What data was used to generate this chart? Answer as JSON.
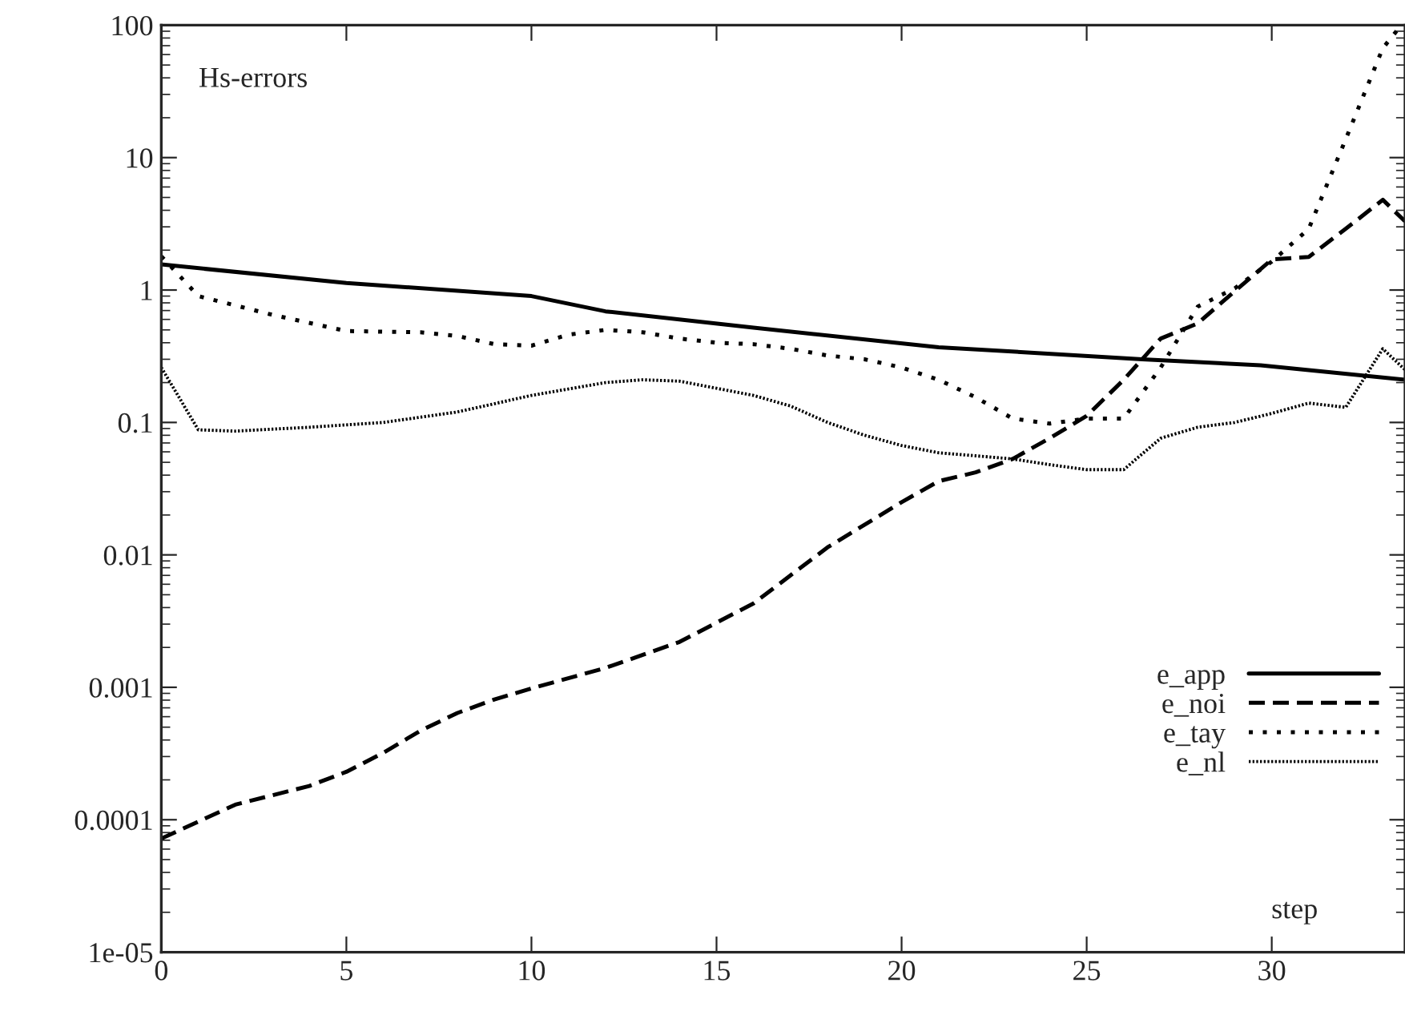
{
  "chart_data": {
    "type": "line",
    "title": "Hs-errors",
    "xlabel": "step",
    "xlim": [
      0,
      33.6
    ],
    "xticks": [
      0,
      5,
      10,
      15,
      20,
      25,
      30
    ],
    "ylim": [
      1e-05,
      100
    ],
    "yticks": [
      {
        "value": 1e-05,
        "label": "1e-05"
      },
      {
        "value": 0.0001,
        "label": "0.0001"
      },
      {
        "value": 0.001,
        "label": "0.001"
      },
      {
        "value": 0.01,
        "label": "0.01"
      },
      {
        "value": 0.1,
        "label": "0.1"
      },
      {
        "value": 1,
        "label": "1"
      },
      {
        "value": 10,
        "label": "10"
      },
      {
        "value": 100,
        "label": "100"
      }
    ],
    "log": "y",
    "grid": false,
    "legend": "bottom right",
    "marker": "none",
    "series": [
      {
        "name": "e_app",
        "color": "#000000",
        "line_style": "solid",
        "x": [
          0,
          5,
          10,
          12,
          16,
          21,
          26.5,
          29.7,
          33.6
        ],
        "values": [
          1.56,
          1.13,
          0.9,
          0.69,
          0.52,
          0.37,
          0.3,
          0.27,
          0.21
        ]
      },
      {
        "name": "e_noi",
        "color": "#000000",
        "line_style": "dashed",
        "x": [
          0,
          2,
          4,
          5,
          6,
          7,
          8,
          9,
          10,
          12,
          14,
          16,
          18,
          20,
          21,
          22,
          23,
          24,
          25,
          26,
          27,
          28,
          29,
          30,
          31,
          32,
          33,
          33.6
        ],
        "values": [
          7.2e-05,
          0.00013,
          0.00018,
          0.00023,
          0.00032,
          0.00047,
          0.00064,
          0.00081,
          0.00098,
          0.0014,
          0.0022,
          0.0043,
          0.0114,
          0.025,
          0.036,
          0.042,
          0.053,
          0.076,
          0.112,
          0.21,
          0.43,
          0.56,
          0.98,
          1.7,
          1.78,
          2.9,
          4.8,
          3.3
        ]
      },
      {
        "name": "e_tay",
        "color": "#000000",
        "line_style": "dotted",
        "x": [
          0,
          1,
          3,
          5,
          7,
          8,
          9,
          10,
          11,
          12,
          13,
          14,
          15,
          16,
          17,
          18,
          19,
          20,
          21,
          22,
          23,
          24,
          25,
          26,
          27,
          28,
          29,
          30,
          31,
          32,
          33,
          33.5
        ],
        "values": [
          1.8,
          0.9,
          0.65,
          0.49,
          0.48,
          0.45,
          0.39,
          0.38,
          0.46,
          0.5,
          0.48,
          0.43,
          0.4,
          0.39,
          0.36,
          0.32,
          0.3,
          0.26,
          0.21,
          0.155,
          0.107,
          0.098,
          0.107,
          0.107,
          0.26,
          0.75,
          1.03,
          1.64,
          2.9,
          13.8,
          67,
          100
        ]
      },
      {
        "name": "e_nl",
        "color": "#000000",
        "line_style": "dotted",
        "x": [
          0,
          1,
          2,
          4,
          6,
          8,
          10,
          12,
          13,
          14,
          16,
          17,
          18,
          19,
          20,
          21,
          22,
          23,
          24,
          25,
          26,
          27,
          28,
          29,
          30,
          31,
          32,
          33,
          33.6
        ],
        "values": [
          0.26,
          0.088,
          0.086,
          0.092,
          0.1,
          0.12,
          0.16,
          0.2,
          0.21,
          0.205,
          0.16,
          0.133,
          0.1,
          0.08,
          0.067,
          0.059,
          0.056,
          0.053,
          0.048,
          0.044,
          0.044,
          0.076,
          0.092,
          0.1,
          0.117,
          0.14,
          0.13,
          0.36,
          0.25
        ]
      }
    ]
  }
}
